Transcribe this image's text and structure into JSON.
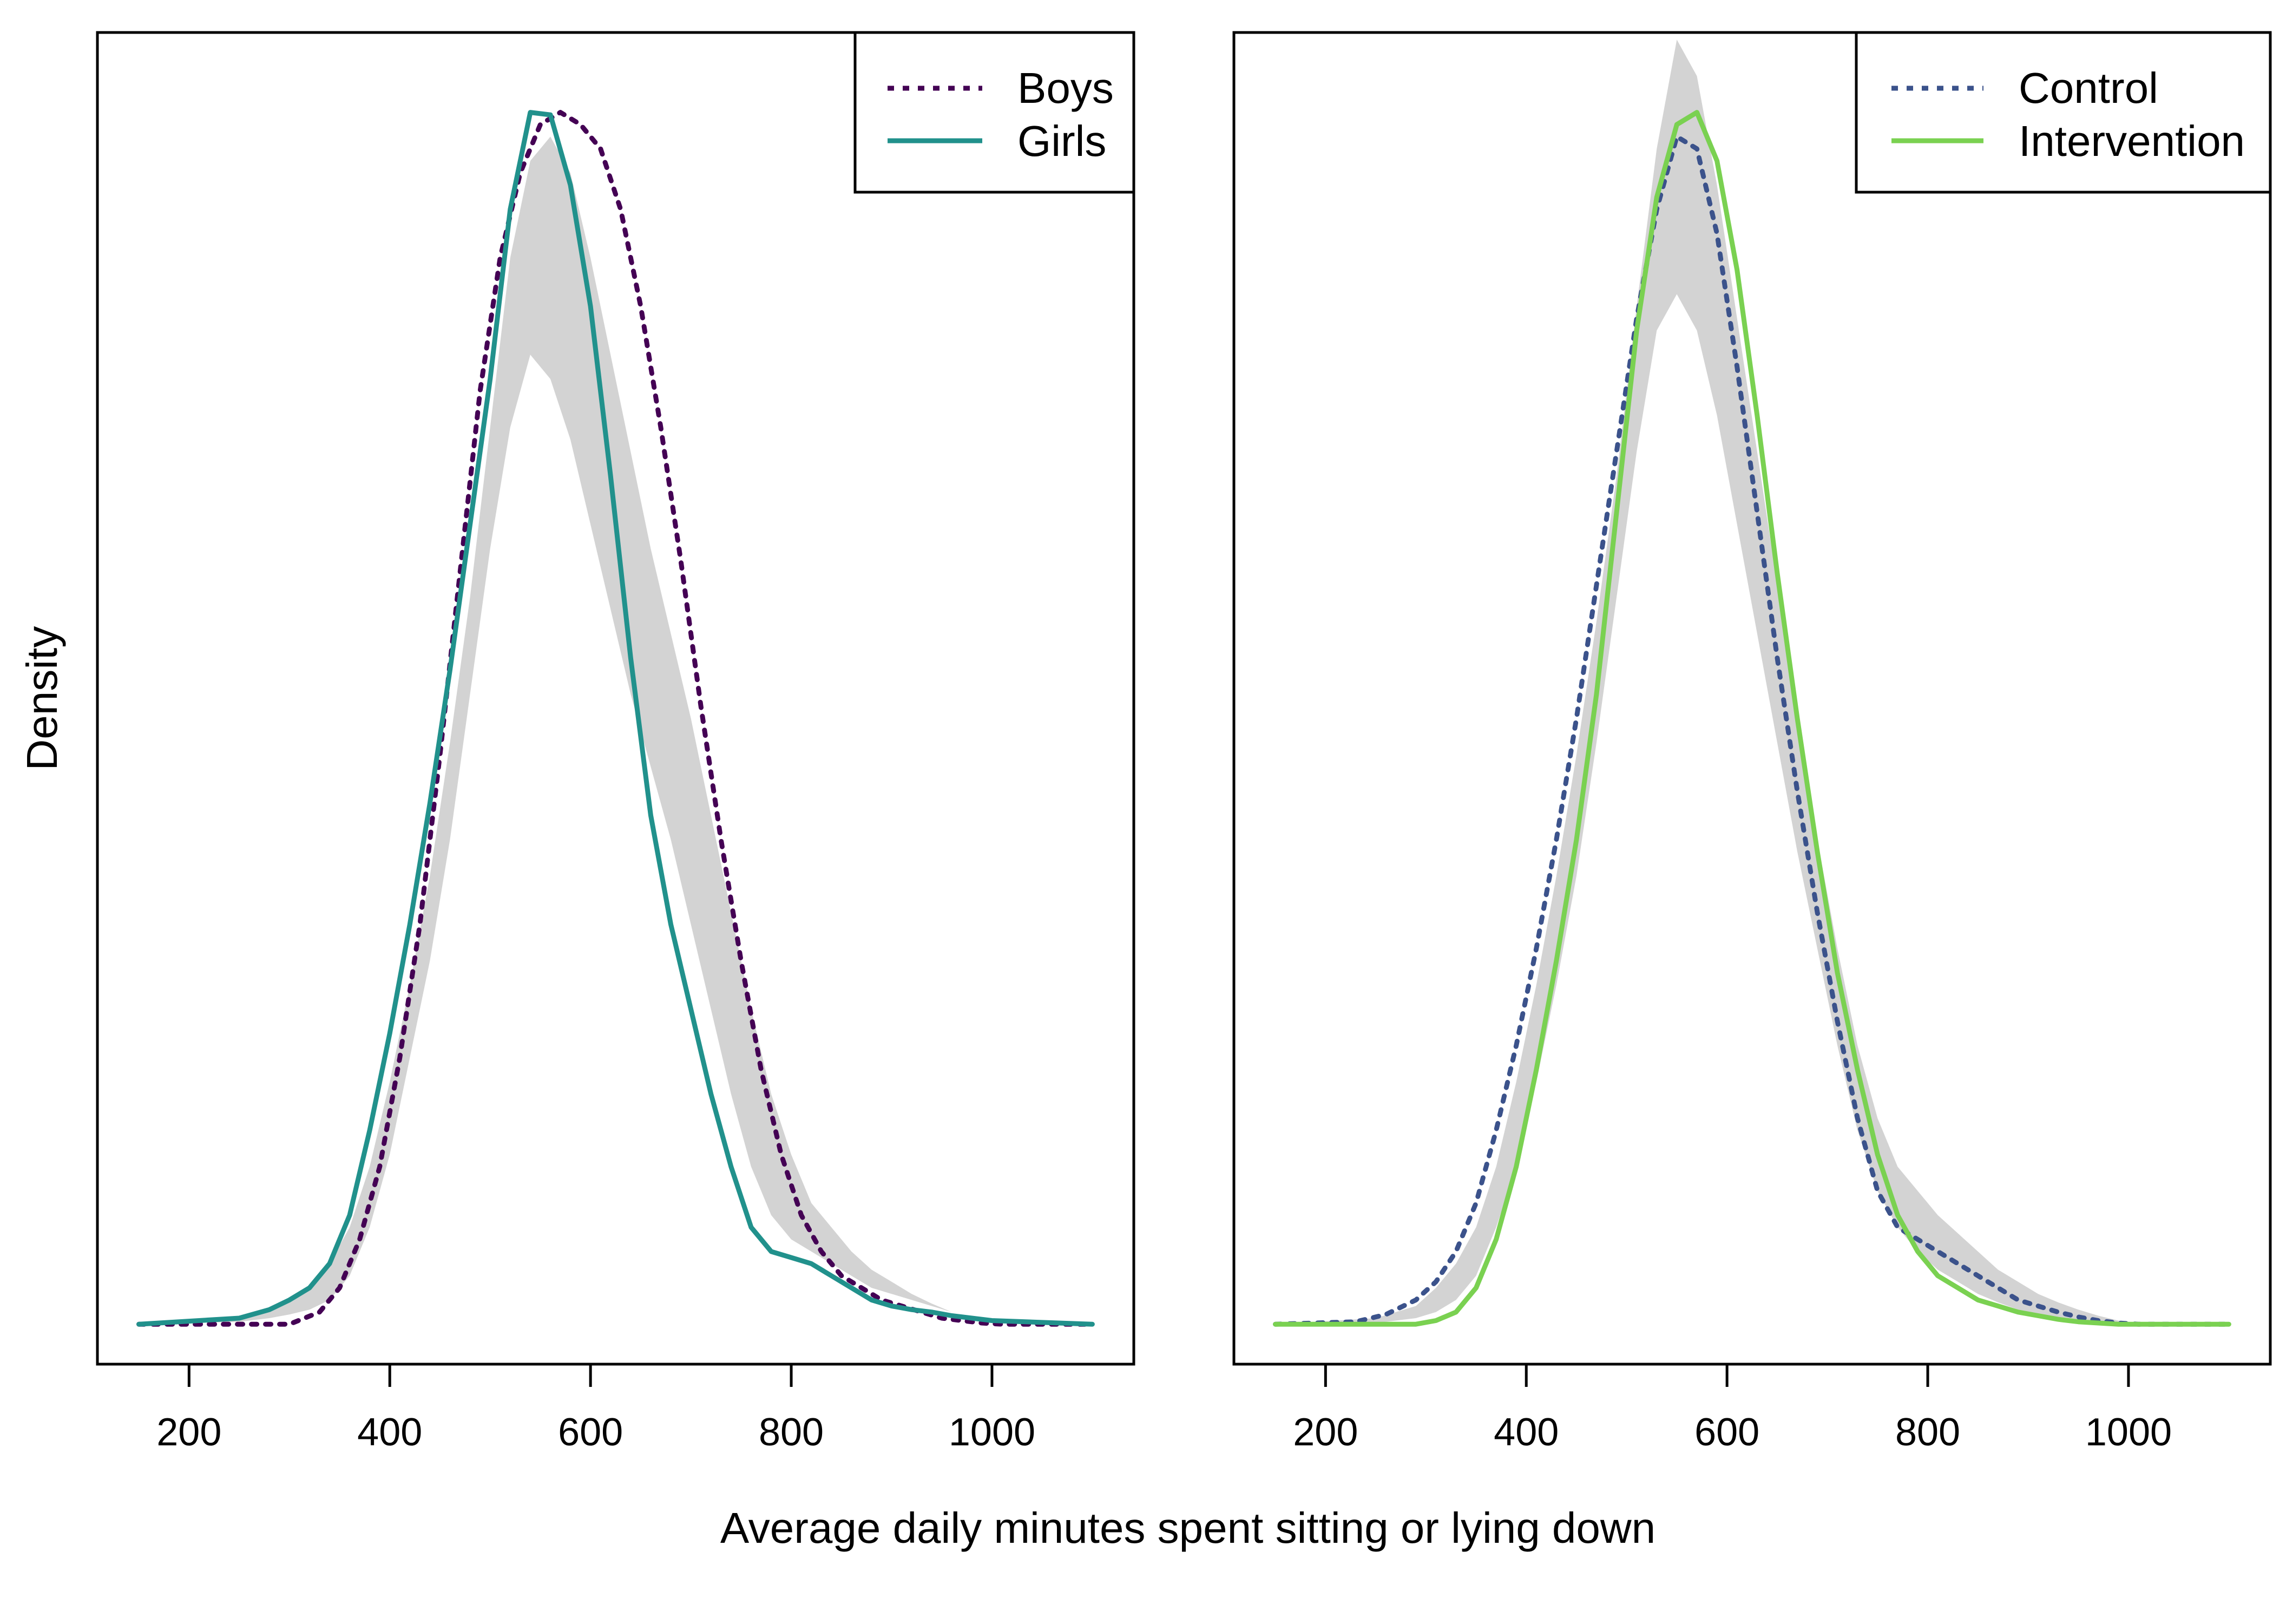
{
  "figure": {
    "xlabel": "Average daily minutes spent sitting or lying down",
    "ylabel": "Density"
  },
  "chart_data": [
    {
      "type": "line",
      "xlim": [
        150,
        1100
      ],
      "ylim": [
        0,
        1
      ],
      "x_ticks": [
        200,
        400,
        600,
        800,
        1000
      ],
      "grid": false,
      "legend_position": "top-right",
      "series": [
        {
          "name": "Boys",
          "color": "#440154",
          "linestyle": "dotted",
          "x": [
            150,
            300,
            330,
            350,
            370,
            390,
            410,
            430,
            450,
            470,
            490,
            510,
            530,
            550,
            570,
            590,
            610,
            630,
            650,
            670,
            690,
            710,
            730,
            750,
            770,
            790,
            810,
            830,
            850,
            870,
            890,
            910,
            930,
            950,
            970,
            990,
            1010,
            1100
          ],
          "y": [
            0,
            0,
            0.01,
            0.03,
            0.07,
            0.13,
            0.22,
            0.33,
            0.47,
            0.62,
            0.77,
            0.88,
            0.95,
            0.99,
            1.0,
            0.99,
            0.97,
            0.92,
            0.84,
            0.74,
            0.63,
            0.51,
            0.4,
            0.3,
            0.21,
            0.14,
            0.09,
            0.06,
            0.04,
            0.03,
            0.02,
            0.015,
            0.01,
            0.005,
            0.003,
            0.001,
            0,
            0
          ]
        },
        {
          "name": "Girls",
          "color": "#21918c",
          "linestyle": "solid",
          "x": [
            150,
            250,
            280,
            300,
            320,
            340,
            360,
            380,
            400,
            420,
            440,
            460,
            480,
            500,
            520,
            540,
            560,
            580,
            600,
            620,
            640,
            660,
            680,
            700,
            720,
            740,
            760,
            780,
            800,
            820,
            840,
            860,
            880,
            900,
            920,
            940,
            960,
            980,
            1000,
            1100
          ],
          "y": [
            0,
            0.005,
            0.012,
            0.02,
            0.03,
            0.05,
            0.09,
            0.16,
            0.24,
            0.33,
            0.43,
            0.54,
            0.66,
            0.78,
            0.92,
            1.0,
            0.998,
            0.94,
            0.84,
            0.7,
            0.55,
            0.42,
            0.33,
            0.26,
            0.19,
            0.13,
            0.08,
            0.06,
            0.055,
            0.05,
            0.04,
            0.03,
            0.02,
            0.015,
            0.012,
            0.01,
            0.007,
            0.005,
            0.003,
            0
          ]
        }
      ],
      "ribbon": {
        "color": "#d3d3d3",
        "x": [
          150,
          250,
          280,
          300,
          320,
          340,
          360,
          380,
          400,
          420,
          440,
          460,
          480,
          500,
          520,
          540,
          560,
          580,
          600,
          620,
          640,
          660,
          680,
          700,
          720,
          740,
          760,
          780,
          800,
          820,
          840,
          860,
          880,
          900,
          920,
          940,
          960,
          980,
          1000,
          1100
        ],
        "lower": [
          0,
          0.002,
          0.005,
          0.008,
          0.012,
          0.02,
          0.04,
          0.08,
          0.14,
          0.22,
          0.3,
          0.4,
          0.52,
          0.64,
          0.74,
          0.8,
          0.78,
          0.73,
          0.66,
          0.59,
          0.52,
          0.46,
          0.4,
          0.33,
          0.26,
          0.19,
          0.13,
          0.09,
          0.07,
          0.06,
          0.05,
          0.04,
          0.03,
          0.025,
          0.02,
          0.015,
          0.01,
          0.005,
          0.002,
          0
        ],
        "upper": [
          0,
          0.006,
          0.012,
          0.02,
          0.03,
          0.05,
          0.08,
          0.13,
          0.2,
          0.28,
          0.37,
          0.48,
          0.6,
          0.74,
          0.88,
          0.96,
          0.98,
          0.95,
          0.88,
          0.8,
          0.72,
          0.64,
          0.57,
          0.5,
          0.42,
          0.34,
          0.26,
          0.19,
          0.14,
          0.1,
          0.08,
          0.06,
          0.045,
          0.035,
          0.025,
          0.017,
          0.01,
          0.005,
          0.002,
          0
        ]
      }
    },
    {
      "type": "line",
      "xlim": [
        150,
        1100
      ],
      "ylim": [
        0,
        1
      ],
      "x_ticks": [
        200,
        400,
        600,
        800,
        1000
      ],
      "grid": false,
      "legend_position": "top-right",
      "series": [
        {
          "name": "Control",
          "color": "#3b528b",
          "linestyle": "dotted",
          "x": [
            150,
            230,
            260,
            290,
            310,
            330,
            350,
            370,
            390,
            410,
            430,
            450,
            470,
            490,
            510,
            530,
            550,
            570,
            590,
            610,
            630,
            650,
            670,
            690,
            710,
            730,
            750,
            770,
            790,
            810,
            830,
            850,
            870,
            890,
            910,
            930,
            950,
            970,
            990,
            1010,
            1100
          ],
          "y": [
            0,
            0.002,
            0.008,
            0.02,
            0.035,
            0.06,
            0.1,
            0.16,
            0.23,
            0.31,
            0.4,
            0.5,
            0.61,
            0.72,
            0.83,
            0.92,
            0.98,
            0.97,
            0.9,
            0.79,
            0.67,
            0.55,
            0.44,
            0.34,
            0.25,
            0.17,
            0.11,
            0.08,
            0.07,
            0.06,
            0.05,
            0.04,
            0.03,
            0.02,
            0.015,
            0.01,
            0.006,
            0.003,
            0.001,
            0,
            0
          ]
        },
        {
          "name": "Intervention",
          "color": "#7ad151",
          "linestyle": "solid",
          "x": [
            150,
            290,
            310,
            330,
            350,
            370,
            390,
            410,
            430,
            450,
            470,
            490,
            510,
            530,
            550,
            570,
            590,
            610,
            630,
            650,
            670,
            690,
            710,
            730,
            750,
            770,
            790,
            810,
            830,
            850,
            870,
            890,
            910,
            930,
            950,
            970,
            990,
            1010,
            1100
          ],
          "y": [
            0,
            0,
            0.003,
            0.01,
            0.03,
            0.07,
            0.13,
            0.21,
            0.3,
            0.4,
            0.52,
            0.67,
            0.82,
            0.93,
            0.99,
            1.0,
            0.96,
            0.87,
            0.75,
            0.62,
            0.5,
            0.39,
            0.29,
            0.21,
            0.14,
            0.09,
            0.06,
            0.04,
            0.03,
            0.02,
            0.015,
            0.01,
            0.007,
            0.004,
            0.002,
            0.001,
            0,
            0,
            0
          ]
        }
      ],
      "ribbon": {
        "color": "#d3d3d3",
        "x": [
          150,
          250,
          290,
          310,
          330,
          350,
          370,
          390,
          410,
          430,
          450,
          470,
          490,
          510,
          530,
          550,
          570,
          590,
          610,
          630,
          650,
          670,
          690,
          710,
          730,
          750,
          770,
          790,
          810,
          830,
          850,
          870,
          890,
          910,
          930,
          950,
          970,
          990,
          1010,
          1100
        ],
        "lower": [
          0,
          0.001,
          0.005,
          0.01,
          0.02,
          0.04,
          0.08,
          0.13,
          0.2,
          0.28,
          0.37,
          0.48,
          0.6,
          0.72,
          0.82,
          0.85,
          0.82,
          0.75,
          0.66,
          0.57,
          0.48,
          0.39,
          0.31,
          0.23,
          0.16,
          0.11,
          0.08,
          0.06,
          0.045,
          0.035,
          0.025,
          0.018,
          0.012,
          0.008,
          0.005,
          0.003,
          0.002,
          0.001,
          0,
          0
        ],
        "upper": [
          0,
          0.005,
          0.015,
          0.03,
          0.05,
          0.08,
          0.13,
          0.2,
          0.28,
          0.37,
          0.47,
          0.58,
          0.7,
          0.84,
          0.97,
          1.06,
          1.03,
          0.94,
          0.83,
          0.72,
          0.61,
          0.5,
          0.4,
          0.31,
          0.23,
          0.17,
          0.13,
          0.11,
          0.09,
          0.075,
          0.06,
          0.045,
          0.035,
          0.025,
          0.018,
          0.012,
          0.007,
          0.003,
          0.001,
          0
        ]
      }
    }
  ]
}
